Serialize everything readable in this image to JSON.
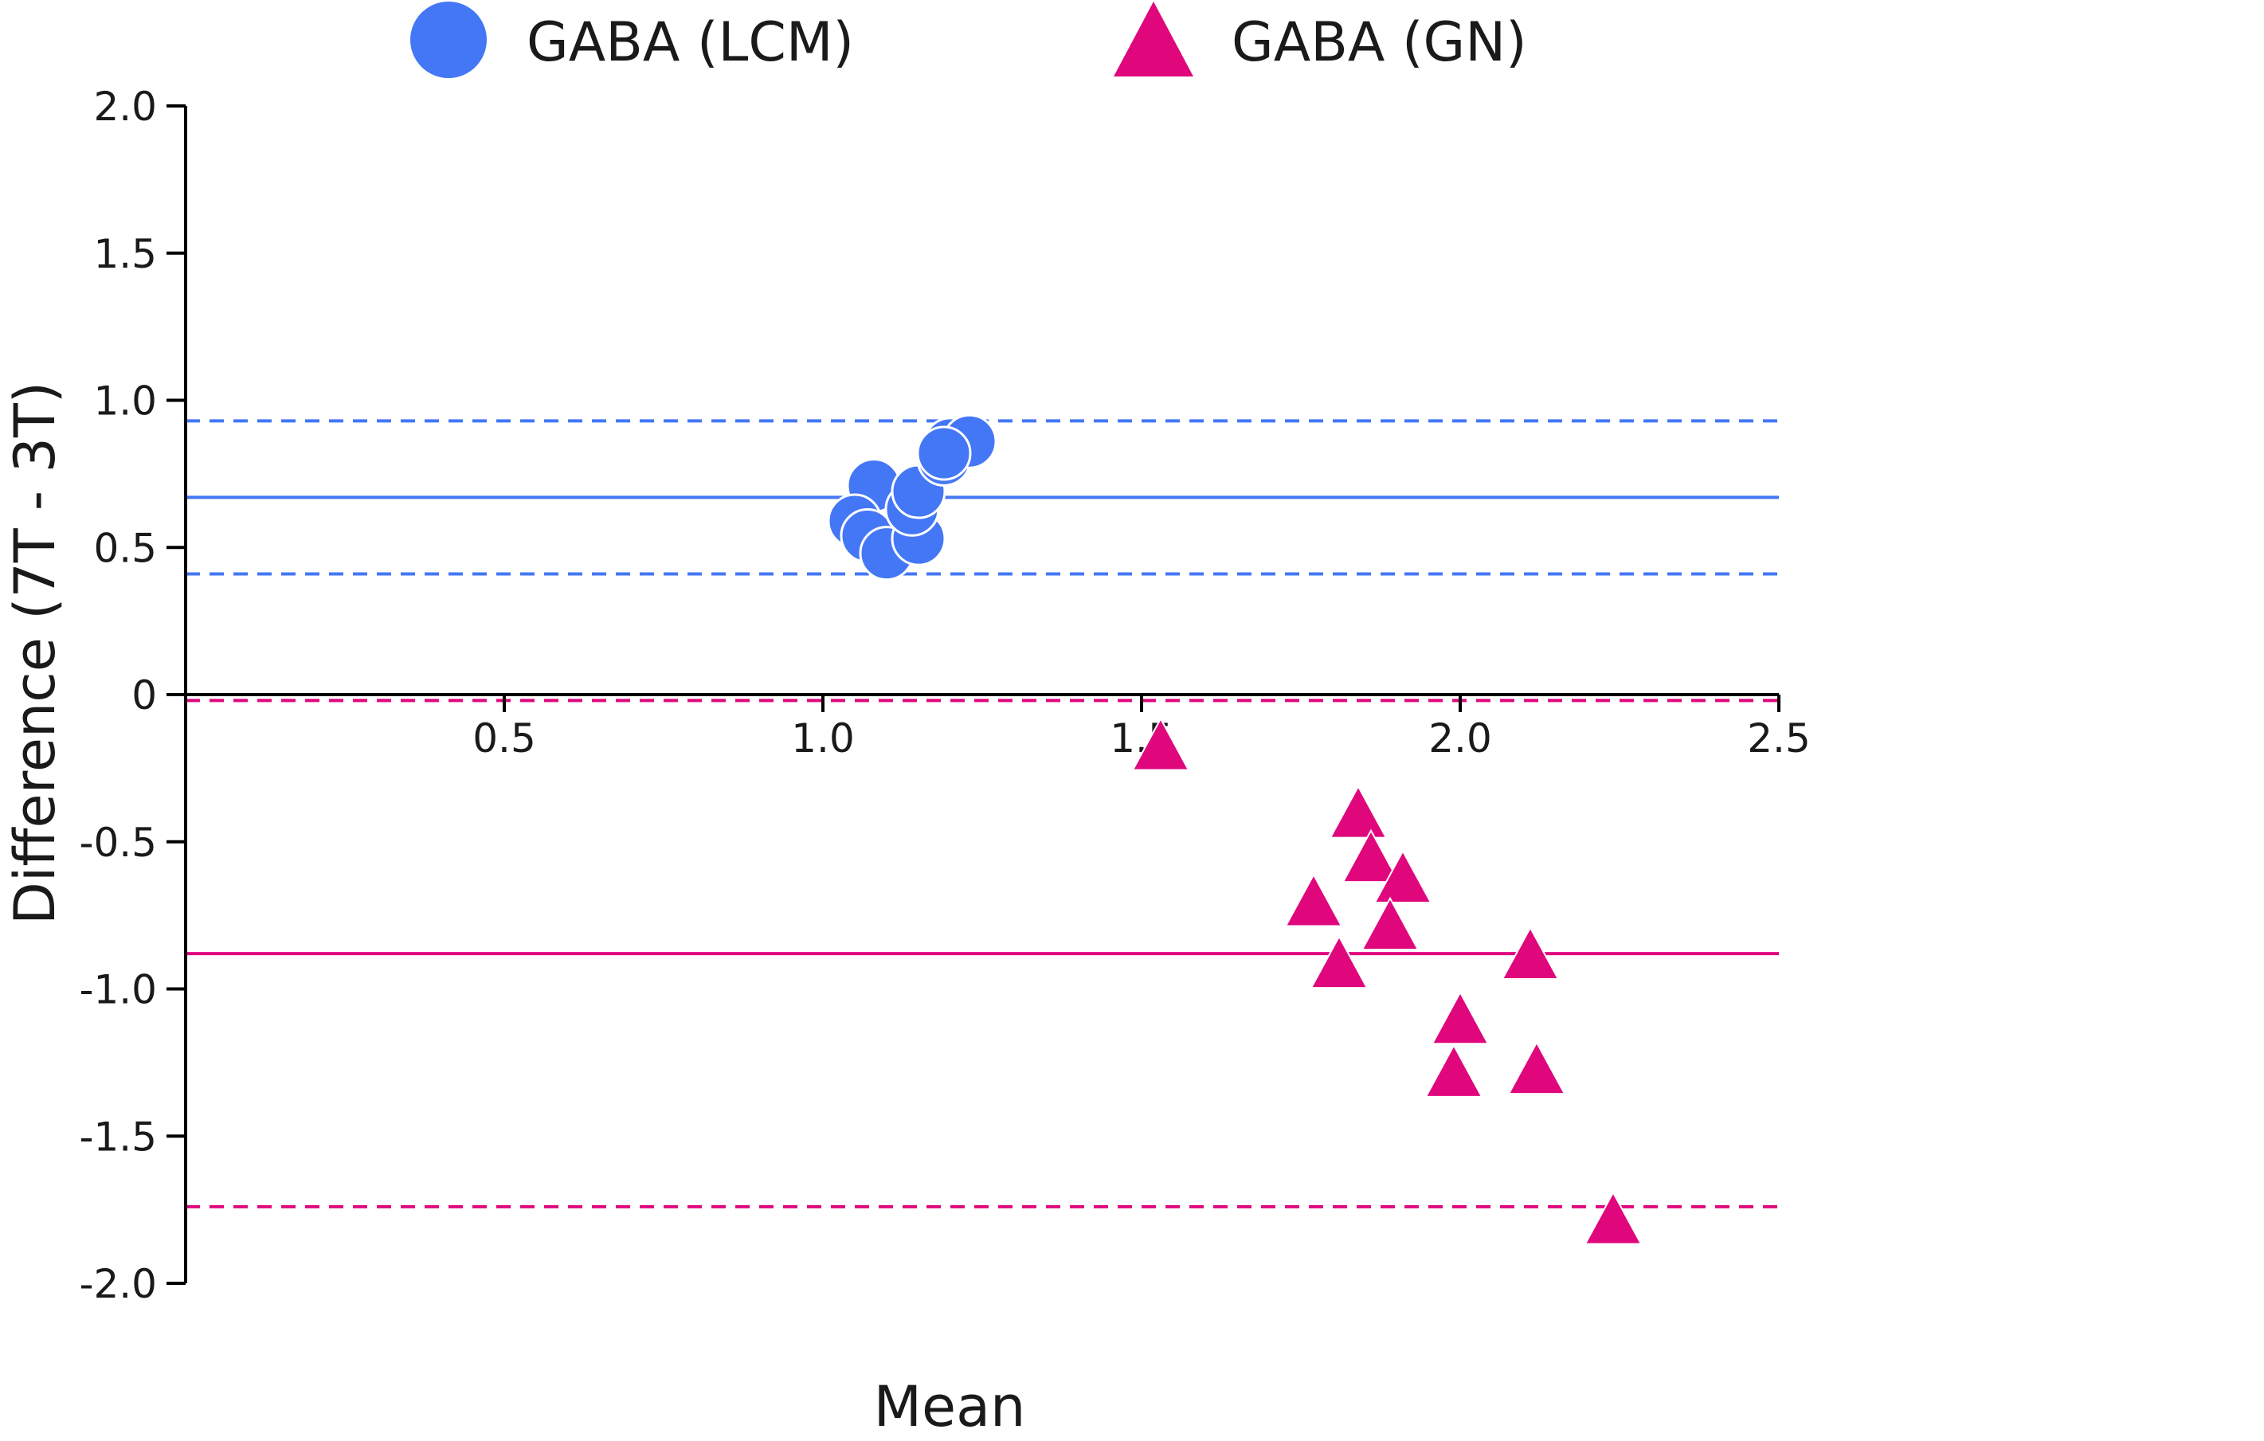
{
  "chart_data": {
    "type": "scatter",
    "title": "",
    "xlabel": "Mean",
    "ylabel": "Difference (7T - 3T)",
    "xlim": [
      0,
      2.5
    ],
    "ylim": [
      -2.0,
      2.0
    ],
    "x_ticks": [
      {
        "value": 0.5,
        "label": "0.5"
      },
      {
        "value": 1.0,
        "label": "1.0"
      },
      {
        "value": 1.5,
        "label": "1.5"
      },
      {
        "value": 2.0,
        "label": "2.0"
      },
      {
        "value": 2.5,
        "label": "2.5"
      }
    ],
    "y_ticks": [
      {
        "value": 2.0,
        "label": "2.0"
      },
      {
        "value": 1.5,
        "label": "1.5"
      },
      {
        "value": 1.0,
        "label": "1.0"
      },
      {
        "value": 0.5,
        "label": "0.5"
      },
      {
        "value": 0,
        "label": "0"
      },
      {
        "value": -0.5,
        "label": "-0.5"
      },
      {
        "value": -1.0,
        "label": "-1.0"
      },
      {
        "value": -1.5,
        "label": "-1.5"
      },
      {
        "value": -2.0,
        "label": "-2.0"
      }
    ],
    "legend_position": "top",
    "series": [
      {
        "name": "GABA (LCM)",
        "marker": "circle",
        "color": "#4477f5",
        "mean_difference": 0.67,
        "limits_of_agreement": [
          0.41,
          0.93
        ],
        "points": [
          {
            "x": 1.08,
            "y": 0.71
          },
          {
            "x": 1.05,
            "y": 0.59
          },
          {
            "x": 1.07,
            "y": 0.54
          },
          {
            "x": 1.1,
            "y": 0.48
          },
          {
            "x": 1.15,
            "y": 0.53
          },
          {
            "x": 1.14,
            "y": 0.63
          },
          {
            "x": 1.15,
            "y": 0.69
          },
          {
            "x": 1.19,
            "y": 0.8
          },
          {
            "x": 1.2,
            "y": 0.85
          },
          {
            "x": 1.23,
            "y": 0.86
          },
          {
            "x": 1.19,
            "y": 0.82
          }
        ]
      },
      {
        "name": "GABA (GN)",
        "marker": "triangle",
        "color": "#e0077d",
        "mean_difference": -0.88,
        "limits_of_agreement": [
          -1.74,
          -0.02
        ],
        "points": [
          {
            "x": 1.53,
            "y": -0.19
          },
          {
            "x": 1.84,
            "y": -0.42
          },
          {
            "x": 1.86,
            "y": -0.57
          },
          {
            "x": 1.91,
            "y": -0.64
          },
          {
            "x": 1.77,
            "y": -0.72
          },
          {
            "x": 1.89,
            "y": -0.8
          },
          {
            "x": 1.81,
            "y": -0.93
          },
          {
            "x": 2.11,
            "y": -0.9
          },
          {
            "x": 2.0,
            "y": -1.12
          },
          {
            "x": 1.99,
            "y": -1.3
          },
          {
            "x": 2.12,
            "y": -1.29
          },
          {
            "x": 2.24,
            "y": -1.8
          }
        ]
      }
    ]
  }
}
